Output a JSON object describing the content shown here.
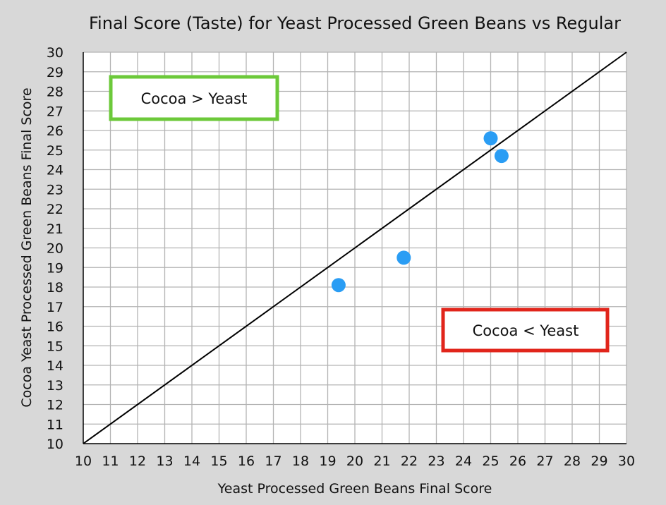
{
  "chart_data": {
    "type": "scatter",
    "title": "Final Score (Taste) for Yeast Processed Green Beans vs Regular",
    "xlabel": "Yeast Processed Green Beans Final Score",
    "ylabel": "Cocoa Yeast Processed Green Beans Final Score",
    "xlim": [
      10,
      30
    ],
    "ylim": [
      10,
      30
    ],
    "grid": true,
    "x_ticks": [
      "10",
      "11",
      "12",
      "13",
      "14",
      "15",
      "16",
      "17",
      "18",
      "19",
      "20",
      "21",
      "22",
      "23",
      "24",
      "25",
      "26",
      "27",
      "28",
      "29",
      "30"
    ],
    "y_ticks": [
      "10",
      "11",
      "12",
      "13",
      "14",
      "15",
      "16",
      "17",
      "18",
      "19",
      "20",
      "21",
      "22",
      "23",
      "24",
      "25",
      "26",
      "27",
      "28",
      "29",
      "30"
    ],
    "series": [
      {
        "color": "#2a9df4",
        "points": [
          {
            "x": 19.4,
            "y": 18.1
          },
          {
            "x": 21.8,
            "y": 19.5
          },
          {
            "x": 25.0,
            "y": 25.6
          },
          {
            "x": 25.4,
            "y": 24.7
          }
        ]
      }
    ],
    "reference_line": {
      "from": [
        10,
        10
      ],
      "to": [
        30,
        30
      ],
      "color": "#000000"
    },
    "annotations": [
      {
        "text": "Cocoa > Yeast",
        "border_color": "#6cc93a",
        "region": "top-left"
      },
      {
        "text": "Cocoa < Yeast",
        "border_color": "#e1251b",
        "region": "bottom-right"
      }
    ]
  }
}
